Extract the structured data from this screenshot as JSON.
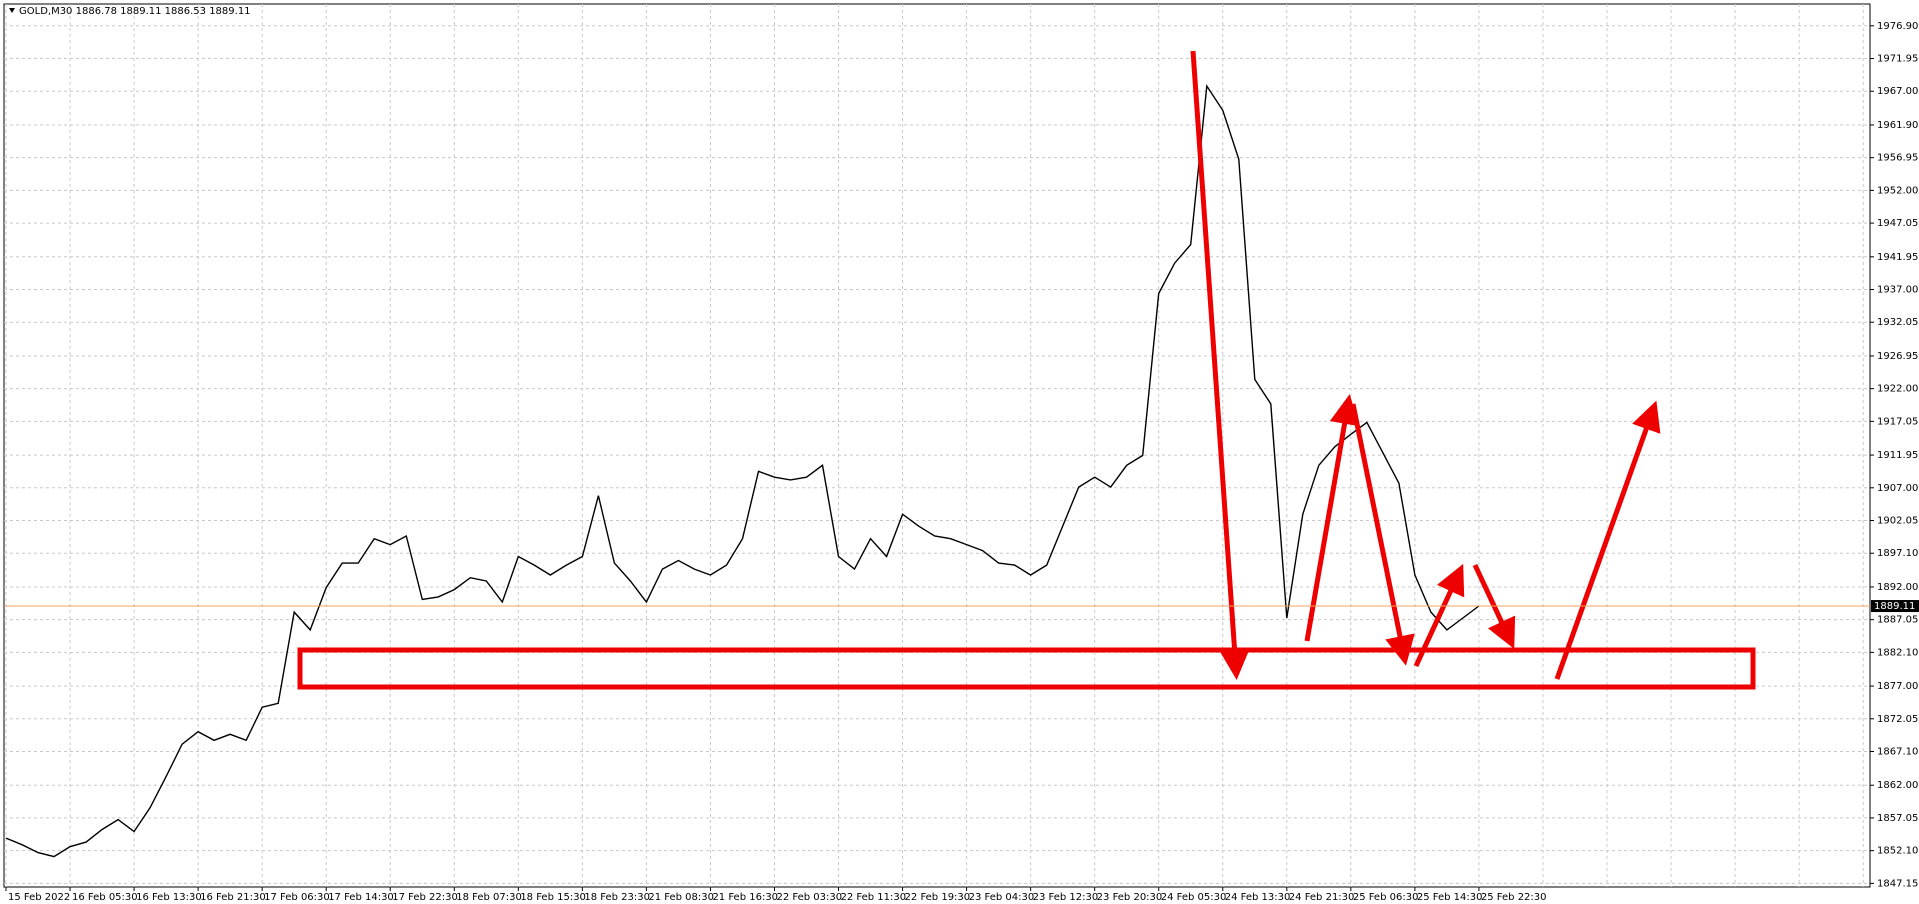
{
  "chart_data": {
    "type": "line",
    "title": "GOLD,M30 1886.78 1889.11 1886.53 1889.11",
    "categories": [
      "15 Feb 2022",
      null,
      null,
      null,
      "16 Feb 05:30",
      null,
      null,
      null,
      "16 Feb 13:30",
      null,
      null,
      null,
      "16 Feb 21:30",
      null,
      null,
      null,
      "17 Feb 06:30",
      null,
      null,
      null,
      "17 Feb 14:30",
      null,
      null,
      null,
      "17 Feb 22:30",
      null,
      null,
      null,
      "18 Feb 07:30",
      null,
      null,
      null,
      "18 Feb 15:30",
      null,
      null,
      null,
      "18 Feb 23:30",
      null,
      null,
      null,
      "21 Feb 08:30",
      null,
      null,
      null,
      "21 Feb 16:30",
      null,
      null,
      null,
      "22 Feb 03:30",
      null,
      null,
      null,
      "22 Feb 11:30",
      null,
      null,
      null,
      "22 Feb 19:30",
      null,
      null,
      null,
      "23 Feb 04:30",
      null,
      null,
      null,
      "23 Feb 12:30",
      null,
      null,
      null,
      "23 Feb 20:30",
      null,
      null,
      null,
      "24 Feb 05:30",
      null,
      null,
      null,
      "24 Feb 13:30",
      null,
      null,
      null,
      "24 Feb 21:30",
      null,
      null,
      null,
      "25 Feb 06:30",
      null,
      null,
      null,
      "25 Feb 14:30",
      null,
      null,
      null,
      "25 Feb 22:30"
    ],
    "series": [
      {
        "color": "#000000",
        "values": [
          1854,
          1853,
          1851.8,
          1851.2,
          1852.7,
          1853.4,
          1855.3,
          1856.8,
          1855,
          1858.6,
          1863.3,
          1868.2,
          1870.1,
          1868.8,
          1869.7,
          1868.8,
          1873.8,
          1874.4,
          1888.2,
          1885.5,
          1891.9,
          1895.6,
          1895.6,
          1899.3,
          1898.4,
          1899.7,
          1890.1,
          1890.5,
          1891.6,
          1893.4,
          1892.9,
          1889.7,
          1896.6,
          1895.3,
          1893.8,
          1895.3,
          1896.6,
          1905.8,
          1895.6,
          1892.9,
          1889.7,
          1894.7,
          1896,
          1894.7,
          1893.8,
          1895.3,
          1899.3,
          1909.5,
          1908.6,
          1908.2,
          1908.6,
          1910.4,
          1896.6,
          1894.7,
          1899.3,
          1896.6,
          1903,
          1901.2,
          1899.7,
          1899.3,
          1898.4,
          1897.5,
          1895.6,
          1895.3,
          1893.8,
          1895.3,
          1901.2,
          1907.1,
          1908.6,
          1907.1,
          1910.4,
          1911.9,
          1936.4,
          1941,
          1943.8,
          1967.8,
          1964.1,
          1956.7,
          1923.4,
          1919.7,
          1887.3,
          1903,
          1910.4,
          1913.2,
          1915.1,
          1916.9,
          1912.3,
          1907.7,
          1893.8,
          1888.2,
          1885.5,
          1887.3,
          1889.11
        ]
      }
    ],
    "price": 1889.11,
    "price_color": "#f4a460",
    "ylim": [
      1846.6,
      1980.2
    ],
    "yticks": [
      {
        "value": 1976.9,
        "label": "1976.90"
      },
      1971.95,
      {
        "value": 1967,
        "label": "1967.00"
      },
      {
        "value": 1961.9,
        "label": "1961.90"
      },
      1956.95,
      {
        "value": 1952,
        "label": "1952.00"
      },
      1947.05,
      1941.95,
      {
        "value": 1937,
        "label": "1937.00"
      },
      1932.05,
      1926.95,
      {
        "value": 1922,
        "label": "1922.00"
      },
      1917.05,
      1911.95,
      {
        "value": 1907,
        "label": "1907.00"
      },
      1902.05,
      {
        "value": 1897.1,
        "label": "1897.10"
      },
      {
        "value": 1892,
        "label": "1892.00"
      },
      1887.05,
      {
        "value": 1882.1,
        "label": "1882.10"
      },
      {
        "value": 1877,
        "label": "1877.00"
      },
      1872.05,
      {
        "value": 1867.1,
        "label": "1867.10"
      },
      {
        "value": 1862,
        "label": "1862.00"
      },
      1857.05,
      {
        "value": 1852.1,
        "label": "1852.10"
      },
      1847.15
    ],
    "grid": true
  }
}
